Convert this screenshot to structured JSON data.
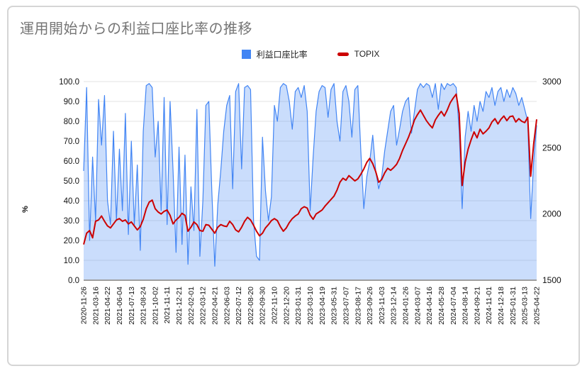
{
  "chart": {
    "title": "運用開始からの利益口座比率の推移",
    "legend": [
      {
        "label": "利益口座比率",
        "swatch": "square",
        "color": "#4285f4"
      },
      {
        "label": "TOPIX",
        "swatch": "dash",
        "color": "#cc0000"
      }
    ],
    "left_axis": {
      "title": "%",
      "ticks": [
        "100.0",
        "90.0",
        "80.0",
        "70.0",
        "60.0",
        "50.0",
        "40.0",
        "30.0",
        "20.0",
        "10.0",
        "0.0"
      ]
    },
    "right_axis": {
      "ticks": [
        "3000",
        "2500",
        "2000",
        "1500"
      ]
    }
  },
  "chart_data": {
    "type": "area+line combo",
    "title": "運用開始からの利益口座比率の推移",
    "left_ylim": [
      0,
      100
    ],
    "right_ylim": [
      1500,
      3000
    ],
    "grid": "horizontal, every 10 units of left axis",
    "legend_position": "top-center",
    "x_tick_labels": [
      "2020-11-26",
      "2021-03-16",
      "2021-04-22",
      "2021-06-04",
      "2021-07-13",
      "2021-08-24",
      "2021-10-02",
      "2021-11-11",
      "2021-12-21",
      "2022-02-01",
      "2022-03-12",
      "2022-04-21",
      "2022-06-03",
      "2022-07-12",
      "2022-08-20",
      "2022-09-30",
      "2022-11-10",
      "2022-12-20",
      "2023-01-31",
      "2023-03-10",
      "2023-04-19",
      "2023-05-31",
      "2023-07-07",
      "2023-08-17",
      "2023-09-26",
      "2023-11-03",
      "2023-12-14",
      "2024-01-26",
      "2024-03-07",
      "2024-04-16",
      "2024-05-28",
      "2024-07-04",
      "2024-08-14",
      "2024-09-21",
      "2024-11-01",
      "2024-12-18",
      "2025-01-31",
      "2025-03-13",
      "2025-04-22"
    ],
    "points_per_tick_interval": 4,
    "series": [
      {
        "name": "利益口座比率",
        "type": "area",
        "axis": "left",
        "unit": "%",
        "color": "#4285f4",
        "fill_opacity": 0.28,
        "values": [
          55,
          97,
          20,
          62,
          30,
          91,
          68,
          93,
          40,
          28,
          75,
          30,
          66,
          35,
          84,
          23,
          70,
          28,
          58,
          15,
          75,
          98,
          99,
          97,
          62,
          80,
          35,
          92,
          28,
          90,
          55,
          14,
          67,
          18,
          63,
          8,
          47,
          25,
          86,
          12,
          40,
          88,
          90,
          45,
          7,
          38,
          55,
          75,
          88,
          93,
          46,
          95,
          99,
          56,
          97,
          98,
          96,
          30,
          12,
          10,
          72,
          45,
          30,
          42,
          88,
          80,
          97,
          99,
          98,
          90,
          76,
          95,
          97,
          92,
          98,
          85,
          35,
          62,
          85,
          95,
          98,
          97,
          82,
          96,
          99,
          80,
          70,
          95,
          98,
          90,
          72,
          96,
          98,
          65,
          36,
          52,
          60,
          73,
          55,
          46,
          52,
          65,
          75,
          85,
          88,
          68,
          76,
          85,
          90,
          92,
          74,
          85,
          96,
          99,
          97,
          99,
          98,
          92,
          99,
          86,
          99,
          96,
          99,
          98,
          99,
          97,
          75,
          36,
          72,
          85,
          75,
          88,
          80,
          90,
          85,
          95,
          92,
          97,
          88,
          95,
          97,
          90,
          96,
          92,
          97,
          94,
          88,
          92,
          86,
          80,
          31,
          60,
          78
        ]
      },
      {
        "name": "TOPIX",
        "type": "line",
        "axis": "right",
        "color": "#cc0000",
        "values": [
          1770,
          1855,
          1875,
          1820,
          1945,
          1955,
          1985,
          1945,
          1910,
          1895,
          1925,
          1955,
          1965,
          1945,
          1955,
          1925,
          1940,
          1910,
          1880,
          1905,
          1960,
          2040,
          2090,
          2105,
          2040,
          2015,
          2000,
          2020,
          2030,
          1990,
          1925,
          1955,
          1975,
          2005,
          1990,
          1870,
          1900,
          1940,
          1920,
          1875,
          1870,
          1920,
          1915,
          1885,
          1855,
          1900,
          1920,
          1910,
          1905,
          1945,
          1920,
          1880,
          1865,
          1900,
          1945,
          1975,
          1955,
          1915,
          1870,
          1835,
          1855,
          1895,
          1920,
          1950,
          1965,
          1950,
          1905,
          1870,
          1895,
          1935,
          1965,
          1985,
          2000,
          2040,
          2055,
          2045,
          1990,
          1960,
          2000,
          2015,
          2030,
          2060,
          2085,
          2110,
          2135,
          2180,
          2240,
          2270,
          2255,
          2290,
          2270,
          2250,
          2265,
          2300,
          2340,
          2390,
          2420,
          2380,
          2320,
          2240,
          2260,
          2310,
          2345,
          2330,
          2350,
          2375,
          2420,
          2480,
          2530,
          2580,
          2640,
          2710,
          2750,
          2785,
          2745,
          2705,
          2675,
          2650,
          2710,
          2745,
          2775,
          2740,
          2785,
          2840,
          2875,
          2905,
          2760,
          2215,
          2390,
          2490,
          2560,
          2620,
          2575,
          2640,
          2605,
          2625,
          2650,
          2695,
          2720,
          2680,
          2715,
          2740,
          2705,
          2735,
          2740,
          2695,
          2720,
          2700,
          2690,
          2730,
          2285,
          2530,
          2715
        ]
      }
    ]
  },
  "style": {
    "gridline_color": "#e3e3e3",
    "baseline_color": "#9e9e9e",
    "axis_label_color": "#111111",
    "title_color": "#757575"
  }
}
